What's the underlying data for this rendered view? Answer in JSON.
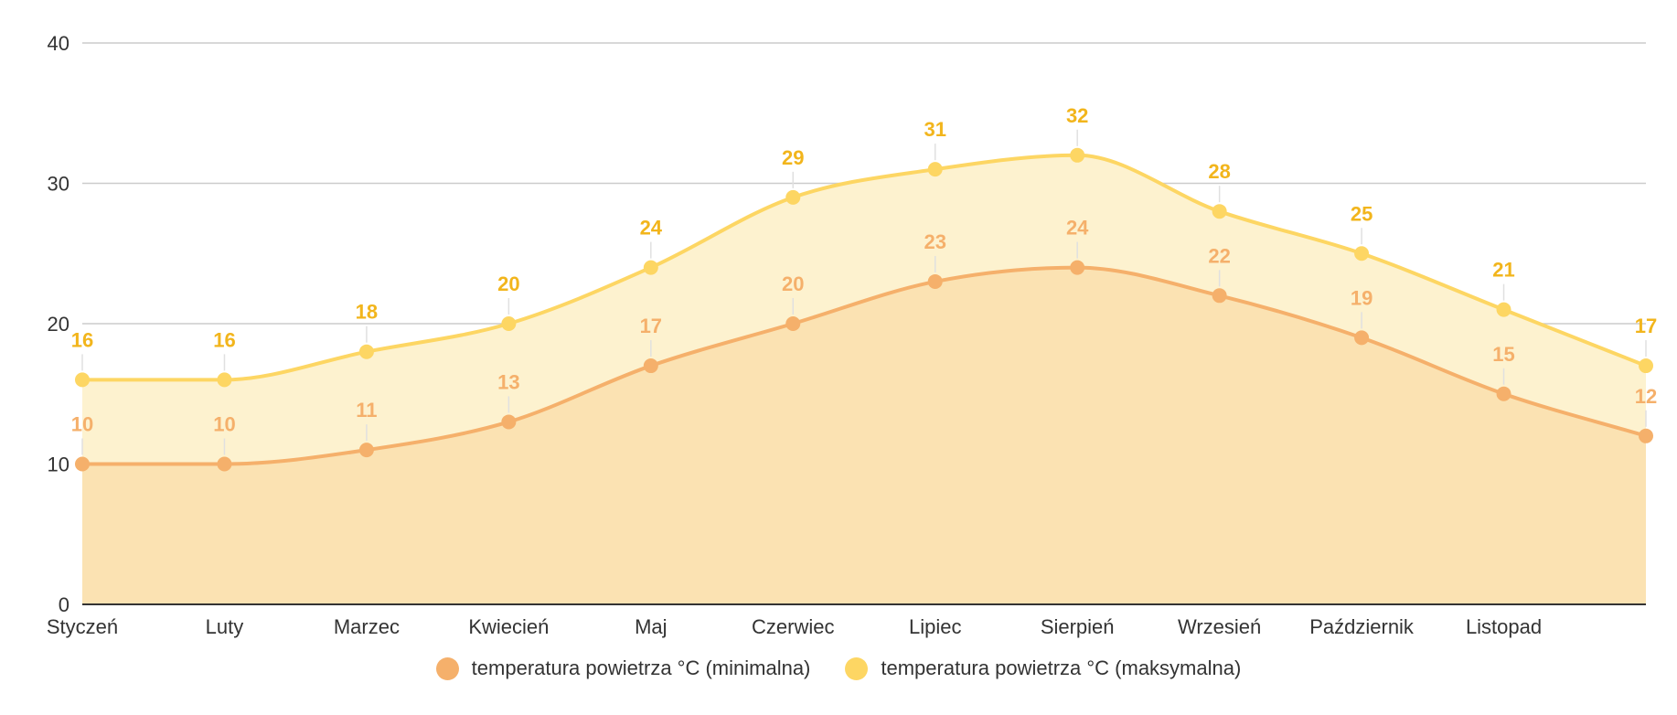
{
  "chart_data": {
    "type": "area",
    "categories": [
      "Styczeń",
      "Luty",
      "Marzec",
      "Kwiecień",
      "Maj",
      "Czerwiec",
      "Lipiec",
      "Sierpień",
      "Wrzesień",
      "Październik",
      "Listopad",
      ""
    ],
    "series": [
      {
        "name": "temperatura powietrza °C (minimalna)",
        "values": [
          10,
          10,
          11,
          13,
          17,
          20,
          23,
          24,
          22,
          19,
          15,
          12
        ],
        "color": "#f5b06b",
        "fill": "#fbe2b2"
      },
      {
        "name": "temperatura powietrza °C (maksymalna)",
        "values": [
          16,
          16,
          18,
          20,
          24,
          29,
          31,
          32,
          28,
          25,
          21,
          17
        ],
        "color": "#fdd663",
        "fill": "#fdf2cf",
        "label_color": "#f2b51c"
      }
    ],
    "ylim": [
      0,
      40
    ],
    "yticks": [
      0,
      10,
      20,
      30,
      40
    ],
    "grid": true,
    "legend": "bottom",
    "data_labels": true,
    "smooth": true
  }
}
